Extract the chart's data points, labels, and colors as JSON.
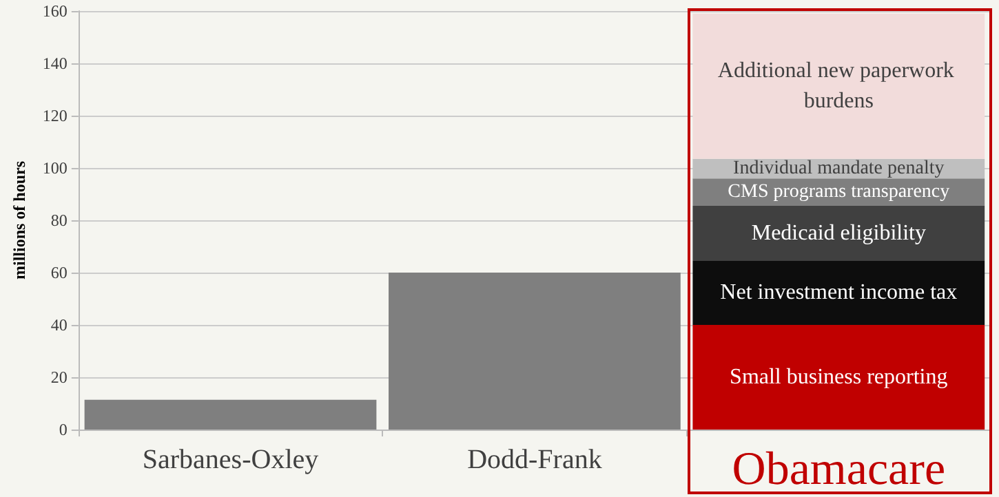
{
  "chart_data": {
    "type": "bar",
    "ylabel": "millions of hours",
    "categories": [
      "Sarbanes-Oxley",
      "Dodd-Frank",
      "Obamacare"
    ],
    "stacked": true,
    "series": [
      {
        "color": "#7f7f7f",
        "values": [
          11.4,
          60,
          null
        ]
      },
      {
        "name": "Small business reporting",
        "color": "#c00000",
        "values": [
          null,
          null,
          40
        ]
      },
      {
        "name": "Net investment income tax",
        "color": "#0d0d0d",
        "values": [
          null,
          null,
          24.5
        ]
      },
      {
        "name": "Medicaid eligibility",
        "color": "#404040",
        "values": [
          null,
          null,
          21
        ]
      },
      {
        "name": "CMS programs transparency",
        "color": "#7f7f7f",
        "values": [
          null,
          null,
          10.5
        ]
      },
      {
        "name": "Individual mandate penalty",
        "color": "#bfbfbf",
        "values": [
          null,
          null,
          7.5
        ]
      },
      {
        "name": "Additional new paperwork burdens",
        "color": "#f2dcdb",
        "values": [
          null,
          null,
          55.5
        ]
      }
    ],
    "ylim": [
      0,
      160
    ],
    "yticks": [
      0,
      20,
      40,
      60,
      80,
      100,
      120,
      140,
      160
    ],
    "grid": "y",
    "legend": false
  }
}
